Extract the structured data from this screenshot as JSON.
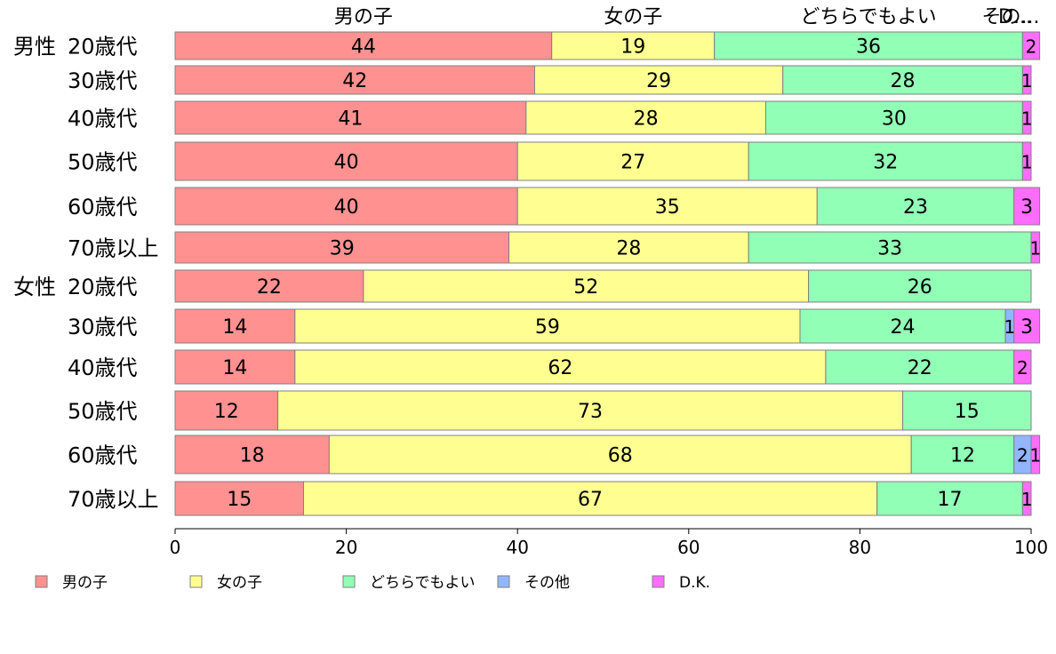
{
  "chart_data": {
    "type": "bar",
    "orientation": "horizontal",
    "stacked": true,
    "title": "",
    "xlabel": "",
    "ylabel": "",
    "xlim": [
      0,
      100
    ],
    "x_ticks": [
      0,
      20,
      40,
      60,
      80,
      100
    ],
    "grid": false,
    "legend_position": "bottom",
    "top_series_labels": [
      "男の子",
      "女の子",
      "どちらでもよい",
      "その...",
      "D..."
    ],
    "categories": [
      {
        "group": "男性",
        "label": "20歳代"
      },
      {
        "group": "",
        "label": "30歳代"
      },
      {
        "group": "",
        "label": "40歳代"
      },
      {
        "group": "",
        "label": "50歳代"
      },
      {
        "group": "",
        "label": "60歳代"
      },
      {
        "group": "",
        "label": "70歳以上"
      },
      {
        "group": "女性",
        "label": "20歳代"
      },
      {
        "group": "",
        "label": "30歳代"
      },
      {
        "group": "",
        "label": "40歳代"
      },
      {
        "group": "",
        "label": "50歳代"
      },
      {
        "group": "",
        "label": "60歳代"
      },
      {
        "group": "",
        "label": "70歳以上"
      }
    ],
    "series": [
      {
        "name": "男の子",
        "color": "#ff9191",
        "values": [
          44,
          42,
          41,
          40,
          40,
          39,
          22,
          14,
          14,
          12,
          18,
          15
        ]
      },
      {
        "name": "女の子",
        "color": "#ffff91",
        "values": [
          19,
          29,
          28,
          27,
          35,
          28,
          52,
          59,
          62,
          73,
          68,
          67
        ]
      },
      {
        "name": "どちらでもよい",
        "color": "#91ffb6",
        "values": [
          36,
          28,
          30,
          32,
          23,
          33,
          26,
          24,
          22,
          15,
          12,
          17
        ]
      },
      {
        "name": "その他",
        "color": "#91b6ff",
        "values": [
          0,
          0,
          0,
          0,
          0,
          0,
          0,
          1,
          0,
          0,
          2,
          0
        ]
      },
      {
        "name": "D.K.",
        "color": "#ff6dff",
        "values": [
          2,
          1,
          1,
          1,
          3,
          1,
          0,
          3,
          2,
          0,
          1,
          1
        ]
      }
    ]
  }
}
